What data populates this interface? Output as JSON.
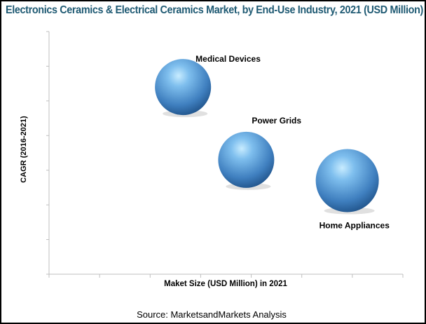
{
  "chart_data": {
    "type": "bubble",
    "title": "Electronics Ceramics & Electrical Ceramics Market, by End-Use Industry, 2021 (USD Million)",
    "xlabel": "Maket Size (USD Million) in 2021",
    "ylabel": "CAGR (2016-2021)",
    "xlim": [
      0,
      7
    ],
    "ylim": [
      0,
      7
    ],
    "x_tick_count": 8,
    "y_tick_count": 8,
    "tick_labels_shown": false,
    "grid": false,
    "bubble_color": "#4a8fd0",
    "points": [
      {
        "label": "Medical Devices",
        "x": 2.65,
        "y": 5.4,
        "size": 40
      },
      {
        "label": "Power Grids",
        "x": 3.9,
        "y": 3.3,
        "size": 40
      },
      {
        "label": "Home Appliances",
        "x": 5.9,
        "y": 2.7,
        "size": 45
      }
    ]
  },
  "source": "Source: MarketsandMarkets Analysis"
}
